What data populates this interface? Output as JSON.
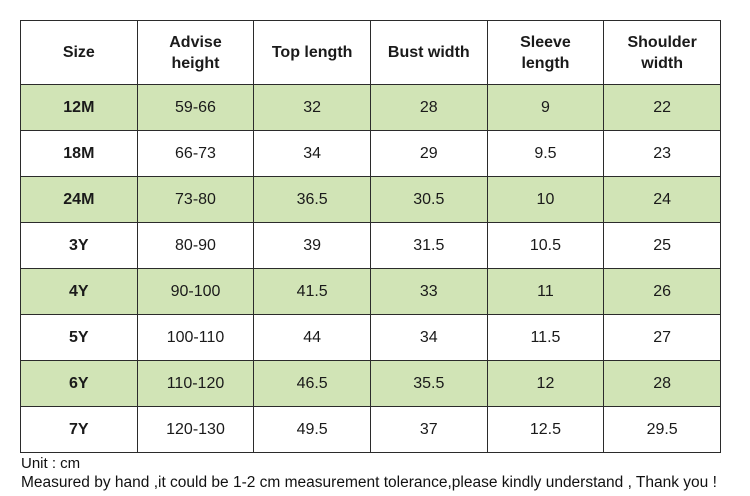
{
  "table": {
    "headers": [
      "Size",
      "Advise height",
      "Top length",
      "Bust width",
      "Sleeve length",
      "Shoulder width"
    ],
    "rows": [
      {
        "size": "12M",
        "height": "59-66",
        "top_length": "32",
        "bust_width": "28",
        "sleeve_length": "9",
        "shoulder_width": "22",
        "shaded": true
      },
      {
        "size": "18M",
        "height": "66-73",
        "top_length": "34",
        "bust_width": "29",
        "sleeve_length": "9.5",
        "shoulder_width": "23",
        "shaded": false
      },
      {
        "size": "24M",
        "height": "73-80",
        "top_length": "36.5",
        "bust_width": "30.5",
        "sleeve_length": "10",
        "shoulder_width": "24",
        "shaded": true
      },
      {
        "size": "3Y",
        "height": "80-90",
        "top_length": "39",
        "bust_width": "31.5",
        "sleeve_length": "10.5",
        "shoulder_width": "25",
        "shaded": false
      },
      {
        "size": "4Y",
        "height": "90-100",
        "top_length": "41.5",
        "bust_width": "33",
        "sleeve_length": "11",
        "shoulder_width": "26",
        "shaded": true
      },
      {
        "size": "5Y",
        "height": "100-110",
        "top_length": "44",
        "bust_width": "34",
        "sleeve_length": "11.5",
        "shoulder_width": "27",
        "shaded": false
      },
      {
        "size": "6Y",
        "height": "110-120",
        "top_length": "46.5",
        "bust_width": "35.5",
        "sleeve_length": "12",
        "shoulder_width": "28",
        "shaded": true
      },
      {
        "size": "7Y",
        "height": "120-130",
        "top_length": "49.5",
        "bust_width": "37",
        "sleeve_length": "12.5",
        "shoulder_width": "29.5",
        "shaded": false
      }
    ]
  },
  "notes": {
    "unit": "Unit : cm",
    "tolerance": "Measured by hand ,it could be 1-2 cm measurement tolerance,please kindly understand , Thank you !"
  },
  "colors": {
    "shaded_row": "#d1e4b6",
    "border": "#2b2b2b"
  }
}
